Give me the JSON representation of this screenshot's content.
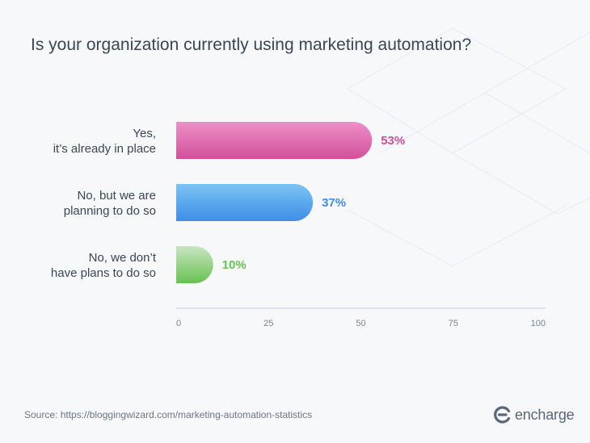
{
  "chart_data": {
    "type": "bar",
    "orientation": "horizontal",
    "title": "Is your organization currently using marketing automation?",
    "categories": [
      [
        "Yes,",
        "it’s already in place"
      ],
      [
        "No, but we are",
        "planning to do so"
      ],
      [
        "No, we don’t",
        "have plans to do so"
      ]
    ],
    "values": [
      53,
      37,
      10
    ],
    "value_labels": [
      "53%",
      "37%",
      "10%"
    ],
    "colors": [
      {
        "from": "#ee8fc9",
        "to": "#d2509b",
        "text": "#cf4f98"
      },
      {
        "from": "#7cc3f5",
        "to": "#3d8ee6",
        "text": "#3d8ee6"
      },
      {
        "from": "#c9e5c2",
        "to": "#67c24f",
        "text": "#67c24f"
      }
    ],
    "xlim": [
      0,
      100
    ],
    "xticks": [
      "0",
      "25",
      "50",
      "75",
      "100"
    ],
    "xlabel": "",
    "ylabel": "",
    "grid": false,
    "legend": "none"
  },
  "footer": {
    "source": "Source: https://bloggingwizard.com/marketing-automation-statistics",
    "brand": "encharge",
    "brand_icon": "encharge-logo-icon"
  }
}
